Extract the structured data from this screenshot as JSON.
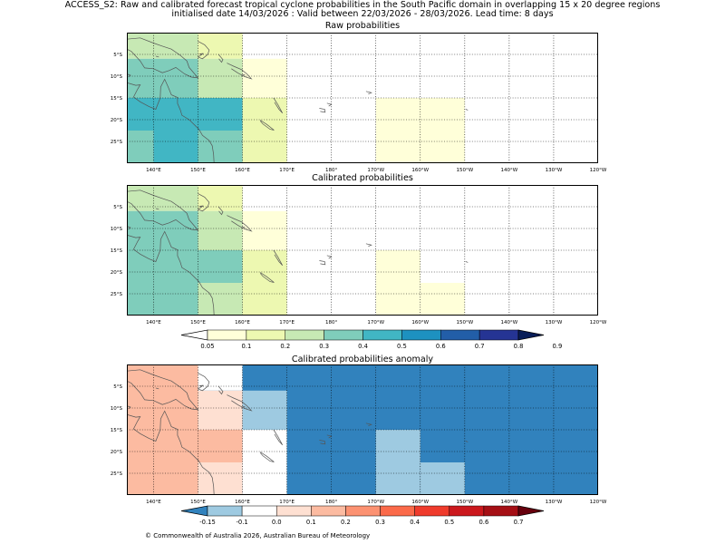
{
  "title": {
    "line1": "ACCESS_S2: Raw and calibrated forecast tropical cyclone probabilities in the South Pacific domain in overlapping 15 x 20 degree regions",
    "line2": "initialised date 14/03/2026 :  Valid between 22/03/2026 - 28/03/2026. Lead time: 8 days"
  },
  "copyright": "© Commonwealth of Australia 2026, Australian Bureau of Meteorology",
  "lon_ticks": [
    "140°E",
    "150°E",
    "160°E",
    "170°E",
    "180°",
    "170°W",
    "160°W",
    "150°W",
    "140°W",
    "130°W",
    "120°W"
  ],
  "lat_ticks": [
    "5°S",
    "10°S",
    "15°S",
    "20°S",
    "25°S"
  ],
  "colors": {
    "prob": [
      "#ffffd9",
      "#edf8b1",
      "#c7e9b4",
      "#7fcdbb",
      "#41b6c4",
      "#1d91c0",
      "#225ea8",
      "#253494",
      "#081d58"
    ],
    "anom": [
      "#3182bd",
      "#9ecae1",
      "#ffffff",
      "#fee0d2",
      "#fcbba1",
      "#fc9272",
      "#fb6a4a",
      "#ef3b2c",
      "#cb181d",
      "#a50f15",
      "#67000d"
    ]
  },
  "chart_data": [
    {
      "type": "heatmap",
      "title": "Raw probabilities",
      "lon_range": [
        134,
        240
      ],
      "lat_range": [
        -30,
        0
      ],
      "value_ranges": [
        "0.05-0.1",
        "0.1-0.2",
        "0.2-0.3",
        "0.3-0.4",
        "0.4-0.5"
      ],
      "cells": [
        {
          "lon": [
            134,
            150
          ],
          "lat": [
            -6,
            0
          ],
          "bin": 2
        },
        {
          "lon": [
            150,
            160
          ],
          "lat": [
            -6,
            0
          ],
          "bin": 1
        },
        {
          "lon": [
            134,
            150
          ],
          "lat": [
            -15,
            -6
          ],
          "bin": 3
        },
        {
          "lon": [
            150,
            160
          ],
          "lat": [
            -15,
            -6
          ],
          "bin": 2
        },
        {
          "lon": [
            160,
            170
          ],
          "lat": [
            -15,
            -6
          ],
          "bin": 0
        },
        {
          "lon": [
            134,
            160
          ],
          "lat": [
            -22.5,
            -15
          ],
          "bin": 4
        },
        {
          "lon": [
            160,
            170
          ],
          "lat": [
            -30,
            -15
          ],
          "bin": 1
        },
        {
          "lon": [
            134,
            140
          ],
          "lat": [
            -30,
            -22.5
          ],
          "bin": 3
        },
        {
          "lon": [
            140,
            150
          ],
          "lat": [
            -30,
            -22.5
          ],
          "bin": 4
        },
        {
          "lon": [
            150,
            160
          ],
          "lat": [
            -30,
            -22.5
          ],
          "bin": 3
        },
        {
          "lon": [
            190,
            210
          ],
          "lat": [
            -30,
            -15
          ],
          "bin": 0
        }
      ]
    },
    {
      "type": "heatmap",
      "title": "Calibrated probabilities",
      "lon_range": [
        134,
        240
      ],
      "lat_range": [
        -30,
        0
      ],
      "value_ranges": [
        "0.05-0.1",
        "0.1-0.2",
        "0.2-0.3",
        "0.3-0.4"
      ],
      "cells": [
        {
          "lon": [
            134,
            150
          ],
          "lat": [
            -6,
            0
          ],
          "bin": 2
        },
        {
          "lon": [
            150,
            160
          ],
          "lat": [
            -6,
            0
          ],
          "bin": 1
        },
        {
          "lon": [
            134,
            150
          ],
          "lat": [
            -15,
            -6
          ],
          "bin": 3
        },
        {
          "lon": [
            150,
            160
          ],
          "lat": [
            -15,
            -6
          ],
          "bin": 2
        },
        {
          "lon": [
            160,
            170
          ],
          "lat": [
            -15,
            -6
          ],
          "bin": 0
        },
        {
          "lon": [
            134,
            160
          ],
          "lat": [
            -22.5,
            -15
          ],
          "bin": 3
        },
        {
          "lon": [
            160,
            170
          ],
          "lat": [
            -30,
            -15
          ],
          "bin": 1
        },
        {
          "lon": [
            134,
            150
          ],
          "lat": [
            -30,
            -22.5
          ],
          "bin": 3
        },
        {
          "lon": [
            150,
            160
          ],
          "lat": [
            -30,
            -22.5
          ],
          "bin": 2
        },
        {
          "lon": [
            190,
            200
          ],
          "lat": [
            -30,
            -15
          ],
          "bin": 0
        },
        {
          "lon": [
            200,
            210
          ],
          "lat": [
            -30,
            -22.5
          ],
          "bin": 0
        }
      ]
    },
    {
      "type": "heatmap",
      "title": "Calibrated probabilities anomaly",
      "lon_range": [
        134,
        240
      ],
      "lat_range": [
        -30,
        0
      ],
      "value_ranges": [
        "<-0.15",
        "-0.15 to -0.1",
        "-0.1 to 0.0",
        "0.0-0.1",
        "0.1-0.2"
      ],
      "cells": [
        {
          "lon": [
            134,
            240
          ],
          "lat": [
            -30,
            0
          ],
          "bin": 0
        },
        {
          "lon": [
            134,
            150
          ],
          "lat": [
            -30,
            0
          ],
          "bin": 4
        },
        {
          "lon": [
            150,
            160
          ],
          "lat": [
            -6,
            0
          ],
          "bin": 2
        },
        {
          "lon": [
            150,
            160
          ],
          "lat": [
            -15,
            -6
          ],
          "bin": 3
        },
        {
          "lon": [
            150,
            160
          ],
          "lat": [
            -22.5,
            -15
          ],
          "bin": 4
        },
        {
          "lon": [
            150,
            160
          ],
          "lat": [
            -30,
            -22.5
          ],
          "bin": 3
        },
        {
          "lon": [
            160,
            170
          ],
          "lat": [
            -15,
            -6
          ],
          "bin": 1
        },
        {
          "lon": [
            160,
            170
          ],
          "lat": [
            -30,
            -15
          ],
          "bin": 2
        },
        {
          "lon": [
            190,
            200
          ],
          "lat": [
            -30,
            -15
          ],
          "bin": 1
        },
        {
          "lon": [
            200,
            210
          ],
          "lat": [
            -30,
            -22.5
          ],
          "bin": 1
        }
      ]
    }
  ],
  "colorbars": {
    "prob": {
      "labels": [
        "0.05",
        "0.1",
        "0.2",
        "0.3",
        "0.4",
        "0.5",
        "0.6",
        "0.7",
        "0.8",
        "0.9"
      ]
    },
    "anom": {
      "labels": [
        "-0.15",
        "-0.1",
        "0.0",
        "0.1",
        "0.2",
        "0.3",
        "0.4",
        "0.5",
        "0.6",
        "0.7"
      ]
    }
  }
}
